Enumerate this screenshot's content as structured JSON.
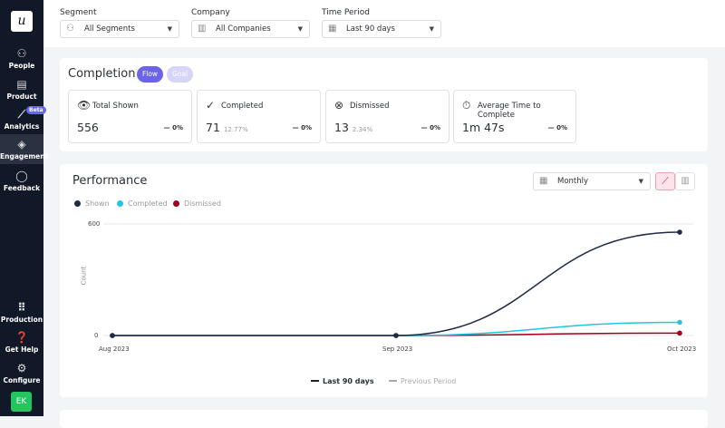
{
  "sidebar": {
    "logo": "u",
    "items": [
      {
        "label": "People",
        "icon": "people-icon"
      },
      {
        "label": "Product",
        "icon": "product-icon"
      },
      {
        "label": "Analytics",
        "icon": "analytics-icon",
        "badge": "Beta"
      },
      {
        "label": "Engagement",
        "icon": "layers-icon",
        "active": true
      },
      {
        "label": "Feedback",
        "icon": "chat-icon"
      }
    ],
    "bottom": [
      {
        "label": "Production",
        "icon": "grid-icon"
      },
      {
        "label": "Get Help",
        "icon": "help-icon"
      },
      {
        "label": "Configure",
        "icon": "gear-icon"
      }
    ],
    "avatar": "EK"
  },
  "filters": {
    "segment": {
      "label": "Segment",
      "value": "All Segments"
    },
    "company": {
      "label": "Company",
      "value": "All Companies"
    },
    "period": {
      "label": "Time Period",
      "value": "Last 90 days"
    }
  },
  "completion": {
    "title": "Completion",
    "tabs": [
      "Flow",
      "Goal"
    ],
    "metrics": [
      {
        "label": "Total Shown",
        "value": "556",
        "pct": "",
        "delta": "— 0%"
      },
      {
        "label": "Completed",
        "value": "71",
        "pct": "12.77%",
        "delta": "— 0%"
      },
      {
        "label": "Dismissed",
        "value": "13",
        "pct": "2.34%",
        "delta": "— 0%"
      },
      {
        "label": "Average Time to Complete",
        "value": "1m 47s",
        "pct": "",
        "delta": "— 0%"
      }
    ]
  },
  "performance": {
    "title": "Performance",
    "interval": "Monthly",
    "footer": [
      "Last 90 days",
      "Previous Period"
    ]
  },
  "chart_data": {
    "type": "line",
    "x": [
      "Aug 2023",
      "Sep 2023",
      "Oct 2023"
    ],
    "ylabel": "Count",
    "ylim": [
      0,
      600
    ],
    "yticks": [
      0,
      600
    ],
    "grid": true,
    "legend": "top-left",
    "series": [
      {
        "name": "Shown",
        "color": "#1f2a44",
        "values": [
          0,
          0,
          556
        ]
      },
      {
        "name": "Completed",
        "color": "#22c5e8",
        "values": [
          0,
          0,
          71
        ]
      },
      {
        "name": "Dismissed",
        "color": "#a0001e",
        "values": [
          0,
          0,
          13
        ]
      }
    ]
  }
}
